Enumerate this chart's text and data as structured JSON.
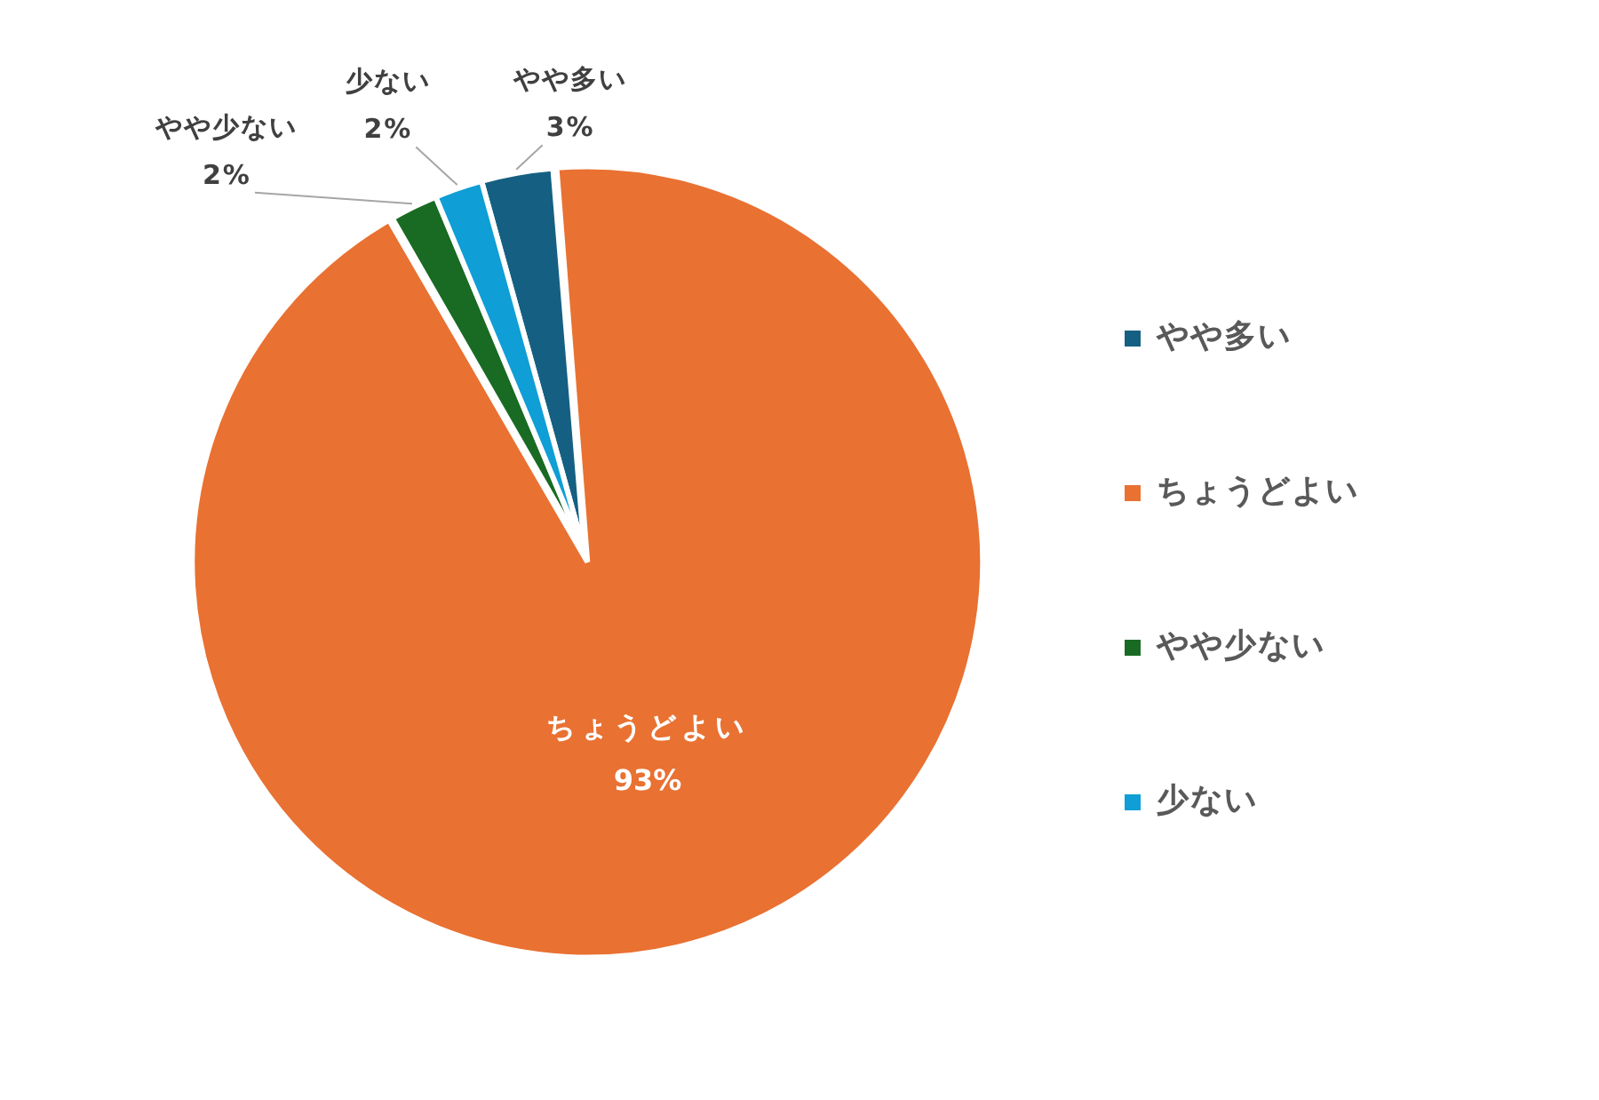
{
  "chart_data": {
    "type": "pie",
    "categories": [
      "やや多い",
      "ちょうどよい",
      "やや少ない",
      "少ない"
    ],
    "values": [
      3,
      93,
      2,
      2
    ],
    "colors": [
      "#156082",
      "#e97132",
      "#196b24",
      "#0f9ed5"
    ],
    "value_labels": [
      "3%",
      "93%",
      "2%",
      "2%"
    ],
    "legend": "right"
  }
}
